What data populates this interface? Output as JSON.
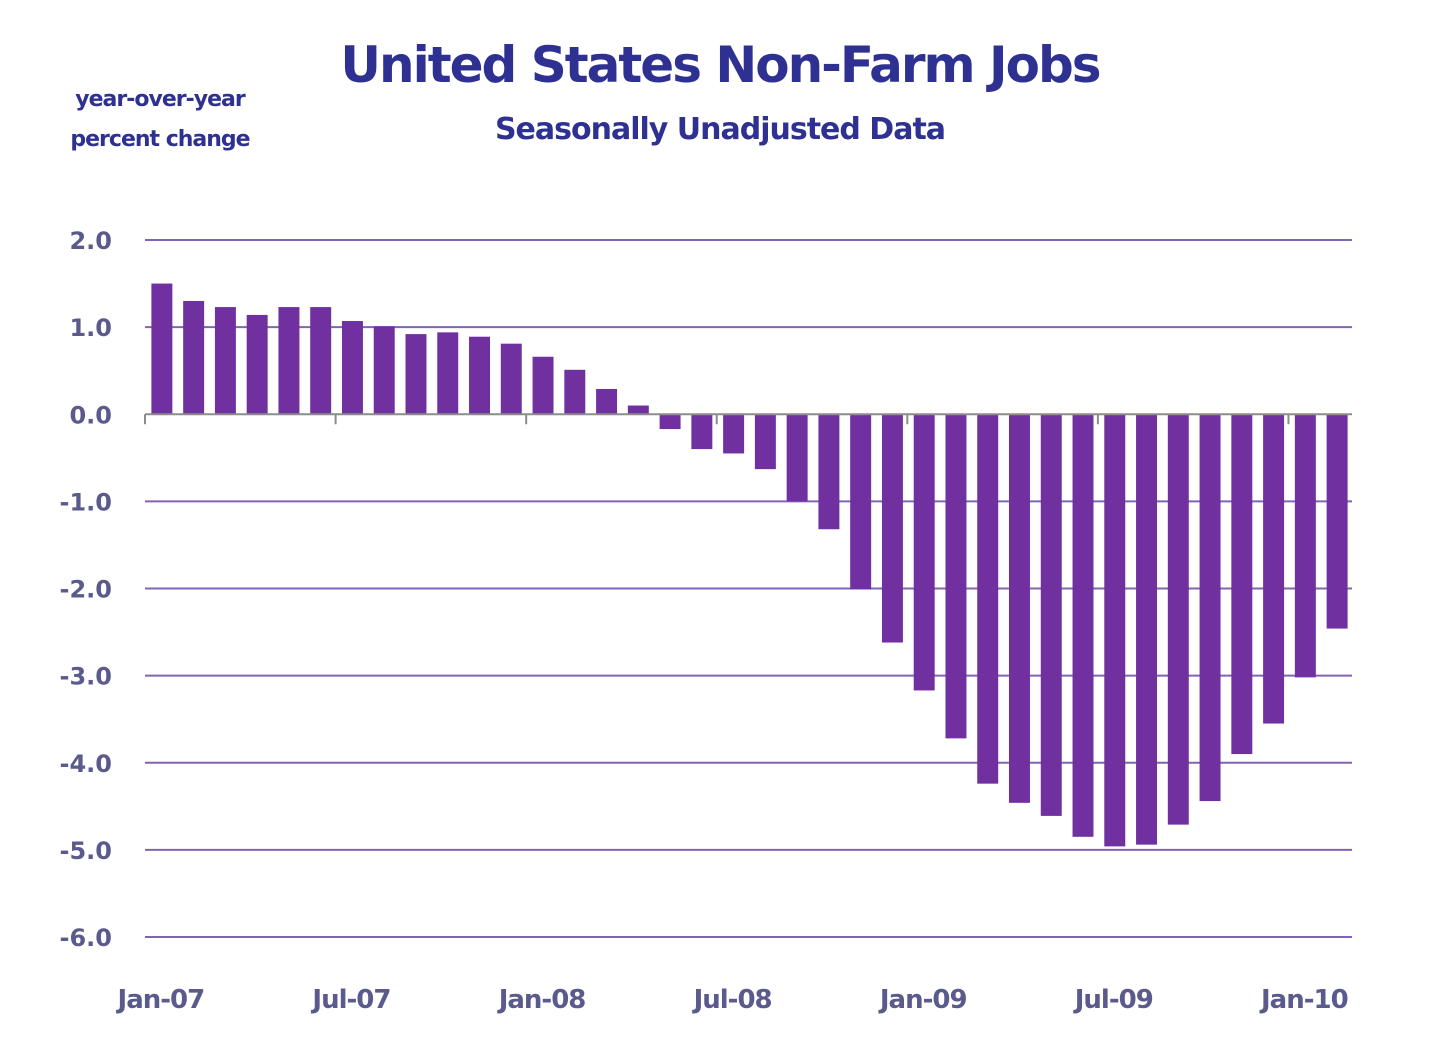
{
  "chart_data": {
    "type": "bar",
    "title": "United States Non-Farm Jobs",
    "subtitle": "Seasonally Unadjusted Data",
    "ylabel": "year-over-year percent change",
    "ylabel_lines": [
      "year-over-year",
      "percent change"
    ],
    "xlabel": "",
    "ylim": [
      -6.0,
      2.0
    ],
    "yticks": [
      2.0,
      1.0,
      0.0,
      -1.0,
      -2.0,
      -3.0,
      -4.0,
      -5.0,
      -6.0
    ],
    "ytick_labels": [
      "2.0",
      "1.0",
      "0.0",
      "-1.0",
      "-2.0",
      "-3.0",
      "-4.0",
      "-5.0",
      "-6.0"
    ],
    "xtick_labels": [
      "Jan-07",
      "Jul-07",
      "Jan-08",
      "Jul-08",
      "Jan-09",
      "Jul-09",
      "Jan-10"
    ],
    "xtick_every": 6,
    "grid": true,
    "legend": "none",
    "bar_color": "#7030A0",
    "grid_color": "#8064B4",
    "title_color": "#2E3192",
    "tick_color": "#5A5A8C",
    "categories": [
      "Jan-07",
      "Feb-07",
      "Mar-07",
      "Apr-07",
      "May-07",
      "Jun-07",
      "Jul-07",
      "Aug-07",
      "Sep-07",
      "Oct-07",
      "Nov-07",
      "Dec-07",
      "Jan-08",
      "Feb-08",
      "Mar-08",
      "Apr-08",
      "May-08",
      "Jun-08",
      "Jul-08",
      "Aug-08",
      "Sep-08",
      "Oct-08",
      "Nov-08",
      "Dec-08",
      "Jan-09",
      "Feb-09",
      "Mar-09",
      "Apr-09",
      "May-09",
      "Jun-09",
      "Jul-09",
      "Aug-09",
      "Sep-09",
      "Oct-09",
      "Nov-09",
      "Dec-09",
      "Jan-10",
      "Feb-10"
    ],
    "values": [
      1.5,
      1.3,
      1.23,
      1.14,
      1.23,
      1.23,
      1.07,
      1.01,
      0.92,
      0.94,
      0.89,
      0.81,
      0.66,
      0.51,
      0.29,
      0.1,
      -0.17,
      -0.4,
      -0.45,
      -0.63,
      -1.0,
      -1.32,
      -2.01,
      -2.62,
      -3.17,
      -3.72,
      -4.24,
      -4.46,
      -4.61,
      -4.85,
      -4.96,
      -4.94,
      -4.71,
      -4.44,
      -3.9,
      -3.55,
      -3.02,
      -2.46
    ]
  }
}
